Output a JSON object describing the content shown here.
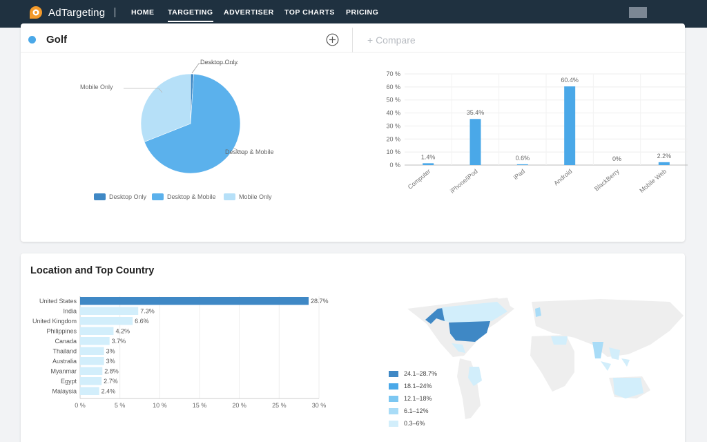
{
  "nav": {
    "brand": "AdTargeting",
    "items": [
      {
        "label": "HOME",
        "active": false
      },
      {
        "label": "TARGETING",
        "active": true
      },
      {
        "label": "ADVERTISER",
        "active": false
      },
      {
        "label": "TOP CHARTS",
        "active": false
      },
      {
        "label": "PRICING",
        "active": false
      }
    ]
  },
  "audience": {
    "name": "Golf",
    "compare_label": "+ Compare"
  },
  "colors": {
    "nav_bg": "#1f3140",
    "accent_orange": "#f39a2a",
    "bar_blue": "#4aa8e8",
    "desktop_only": "#3f88c5",
    "desktop_mobile": "#5bb1ec",
    "mobile_only": "#b6e0f8",
    "country_top": "#3f88c5",
    "country_other": "#d2eefb"
  },
  "location": {
    "title": "Location and Top Country"
  },
  "map": {
    "highlighted": [
      {
        "region": "United States",
        "bucket": "24.1–28.7%"
      },
      {
        "region": "India",
        "bucket": "6.1–12%"
      },
      {
        "region": "United Kingdom",
        "bucket": "6.1–12%"
      },
      {
        "region": "Canada",
        "bucket": "0.3–6%"
      },
      {
        "region": "Australia",
        "bucket": "0.3–6%"
      },
      {
        "region": "Alaska",
        "bucket": "24.1–28.7%"
      }
    ],
    "legend": [
      {
        "label": "24.1–28.7%",
        "color": "#3f88c5"
      },
      {
        "label": "18.1–24%",
        "color": "#4aa8e8"
      },
      {
        "label": "12.1–18%",
        "color": "#7cc7f2"
      },
      {
        "label": "6.1–12%",
        "color": "#a9dcf7"
      },
      {
        "label": "0.3–6%",
        "color": "#d2eefb"
      }
    ]
  },
  "chart_data": [
    {
      "type": "pie",
      "categories": [
        "Desktop Only",
        "Desktop & Mobile",
        "Mobile Only"
      ],
      "values": [
        1.0,
        68.0,
        31.0
      ],
      "colors": [
        "#3f88c5",
        "#5bb1ec",
        "#b6e0f8"
      ],
      "legend": [
        "Desktop Only",
        "Desktop & Mobile",
        "Mobile Only"
      ],
      "legend_position": "bottom"
    },
    {
      "type": "bar",
      "categories": [
        "Computer",
        "iPhone/iPod",
        "iPad",
        "Android",
        "BlackBerry",
        "Mobile Web"
      ],
      "values": [
        1.4,
        35.4,
        0.6,
        60.4,
        0,
        2.2
      ],
      "data_labels": [
        "1.4%",
        "35.4%",
        "0.6%",
        "60.4%",
        "0%",
        "2.2%"
      ],
      "ylim": [
        0,
        70
      ],
      "yticks": [
        "0 %",
        "10 %",
        "20 %",
        "30 %",
        "40 %",
        "50 %",
        "60 %",
        "70 %"
      ],
      "grid": true
    },
    {
      "type": "bar",
      "orientation": "horizontal",
      "categories": [
        "United States",
        "India",
        "United Kingdom",
        "Philippines",
        "Canada",
        "Thailand",
        "Australia",
        "Myanmar",
        "Egypt",
        "Malaysia"
      ],
      "values": [
        28.7,
        7.3,
        6.6,
        4.2,
        3.7,
        3,
        3,
        2.8,
        2.7,
        2.4
      ],
      "data_labels": [
        "28.7%",
        "7.3%",
        "6.6%",
        "4.2%",
        "3.7%",
        "3%",
        "3%",
        "2.8%",
        "2.7%",
        "2.4%"
      ],
      "xlim": [
        0,
        30
      ],
      "xticks": [
        "0 %",
        "5 %",
        "10 %",
        "15 %",
        "20 %",
        "25 %",
        "30 %"
      ],
      "grid": true
    }
  ]
}
